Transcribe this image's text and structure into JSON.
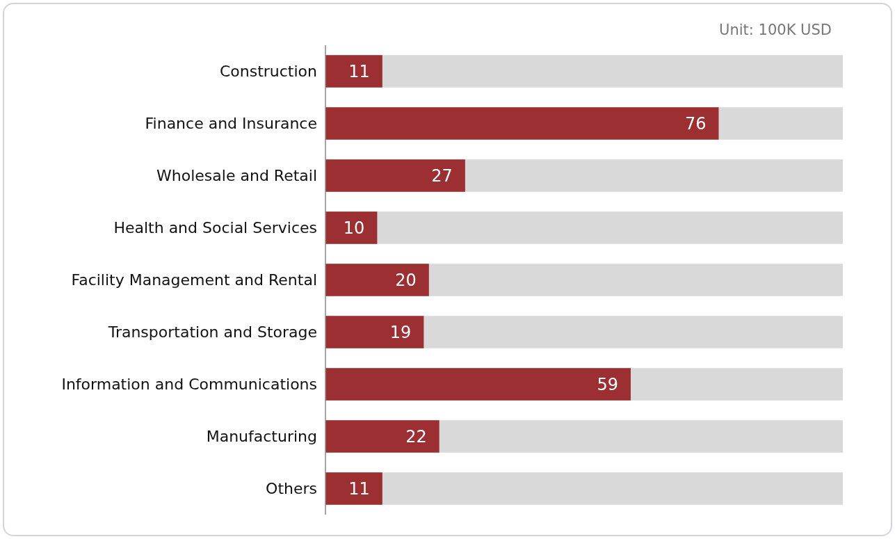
{
  "chart_data": {
    "type": "bar",
    "orientation": "horizontal",
    "categories": [
      "Construction",
      "Finance and Insurance",
      "Wholesale and Retail",
      "Health and Social Services",
      "Facility Management and Rental",
      "Transportation and Storage",
      "Information and Communications",
      "Manufacturing",
      "Others"
    ],
    "values": [
      11,
      76,
      27,
      10,
      20,
      19,
      59,
      22,
      11
    ],
    "color": "#9b2f32",
    "xlim": [
      0,
      100
    ],
    "tick_labels": "y",
    "data_labels": true,
    "annotations": [
      "Unit: 100K USD"
    ]
  }
}
